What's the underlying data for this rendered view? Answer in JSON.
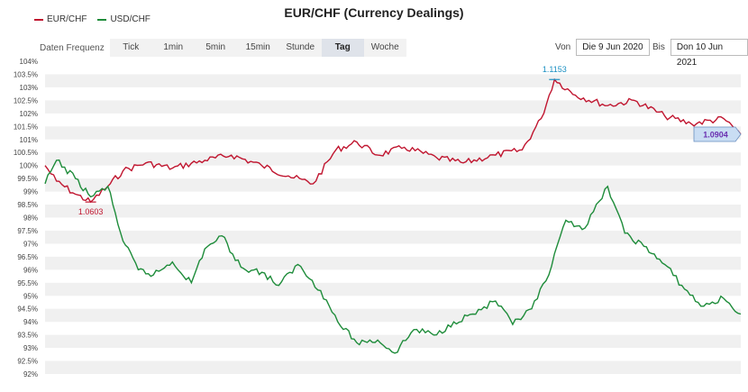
{
  "title": "EUR/CHF (Currency Dealings)",
  "legend": [
    {
      "label": "EUR/CHF",
      "color": "#c0152f"
    },
    {
      "label": "USD/CHF",
      "color": "#1e8c3a"
    }
  ],
  "toolbar": {
    "freq_label": "Daten Frequenz",
    "buttons": [
      "Tick",
      "1min",
      "5min",
      "15min",
      "Stunde",
      "Tag",
      "Woche"
    ],
    "active": "Tag"
  },
  "range": {
    "from_label": "Von",
    "from_value": "Die 9 Jun 2020",
    "to_label": "Bis",
    "to_value": "Don 10 Jun 2021"
  },
  "chart_data": {
    "type": "line",
    "title": "EUR/CHF (Currency Dealings)",
    "ylim": [
      92,
      104
    ],
    "yticks": [
      "92%",
      "92.5%",
      "93%",
      "93.5%",
      "94%",
      "94.5%",
      "95%",
      "95.5%",
      "96%",
      "96.5%",
      "97%",
      "97.5%",
      "98%",
      "98.5%",
      "99%",
      "99.5%",
      "100%",
      "100.5%",
      "101%",
      "101.5%",
      "102%",
      "102.5%",
      "103%",
      "103.5%",
      "104%"
    ],
    "x_range": [
      "2020-06-09",
      "2021-06-10"
    ],
    "grid": "horizontal bands",
    "legend_position": "top-left",
    "annotations": [
      {
        "label": "1.0603",
        "series": "EUR/CHF",
        "x": "2020-07-03",
        "y": 98.6,
        "color": "#c0152f"
      },
      {
        "label": "1.1153",
        "series": "EUR/CHF",
        "x": "2021-03-04",
        "y": 103.3,
        "color": "#1a8fc2"
      },
      {
        "label": "1.0904",
        "series": "EUR/CHF",
        "x": "2021-06-10",
        "y": 101.2,
        "color": "#6a2fb0"
      }
    ],
    "series": [
      {
        "name": "EUR/CHF",
        "color": "#c0152f",
        "x": [
          "2020-06-09",
          "2020-06-15",
          "2020-06-25",
          "2020-07-03",
          "2020-07-12",
          "2020-07-20",
          "2020-08-01",
          "2020-08-15",
          "2020-09-01",
          "2020-09-15",
          "2020-10-01",
          "2020-10-15",
          "2020-10-28",
          "2020-11-09",
          "2020-11-20",
          "2020-12-01",
          "2020-12-15",
          "2021-01-01",
          "2021-01-15",
          "2021-02-01",
          "2021-02-15",
          "2021-02-25",
          "2021-03-04",
          "2021-03-15",
          "2021-04-01",
          "2021-04-15",
          "2021-05-01",
          "2021-05-15",
          "2021-06-01",
          "2021-06-10"
        ],
        "values": [
          100.0,
          99.4,
          98.9,
          98.6,
          99.2,
          99.8,
          100.1,
          99.9,
          100.2,
          100.4,
          100.0,
          99.6,
          99.3,
          100.6,
          100.9,
          100.4,
          100.7,
          100.3,
          100.1,
          100.4,
          100.6,
          101.8,
          103.3,
          102.7,
          102.3,
          102.5,
          101.9,
          101.6,
          101.8,
          101.2
        ]
      },
      {
        "name": "USD/CHF",
        "color": "#1e8c3a",
        "x": [
          "2020-06-09",
          "2020-06-15",
          "2020-06-25",
          "2020-07-03",
          "2020-07-12",
          "2020-07-20",
          "2020-07-28",
          "2020-08-05",
          "2020-08-15",
          "2020-08-25",
          "2020-09-01",
          "2020-09-10",
          "2020-09-20",
          "2020-10-01",
          "2020-10-10",
          "2020-10-20",
          "2020-11-01",
          "2020-11-10",
          "2020-11-20",
          "2020-12-01",
          "2020-12-10",
          "2020-12-20",
          "2021-01-01",
          "2021-01-10",
          "2021-01-20",
          "2021-02-01",
          "2021-02-10",
          "2021-02-20",
          "2021-03-01",
          "2021-03-10",
          "2021-03-20",
          "2021-04-01",
          "2021-04-10",
          "2021-04-20",
          "2021-05-01",
          "2021-05-10",
          "2021-05-20",
          "2021-06-01",
          "2021-06-10"
        ],
        "values": [
          99.3,
          100.2,
          99.5,
          98.8,
          99.2,
          97.1,
          96.0,
          95.8,
          96.3,
          95.5,
          96.8,
          97.3,
          96.1,
          95.9,
          95.4,
          96.2,
          95.2,
          94.0,
          93.2,
          93.3,
          92.8,
          93.7,
          93.5,
          94.0,
          94.3,
          94.8,
          93.9,
          94.5,
          95.8,
          97.9,
          97.6,
          99.2,
          97.4,
          96.9,
          96.2,
          95.4,
          94.6,
          94.9,
          94.3
        ]
      }
    ]
  }
}
